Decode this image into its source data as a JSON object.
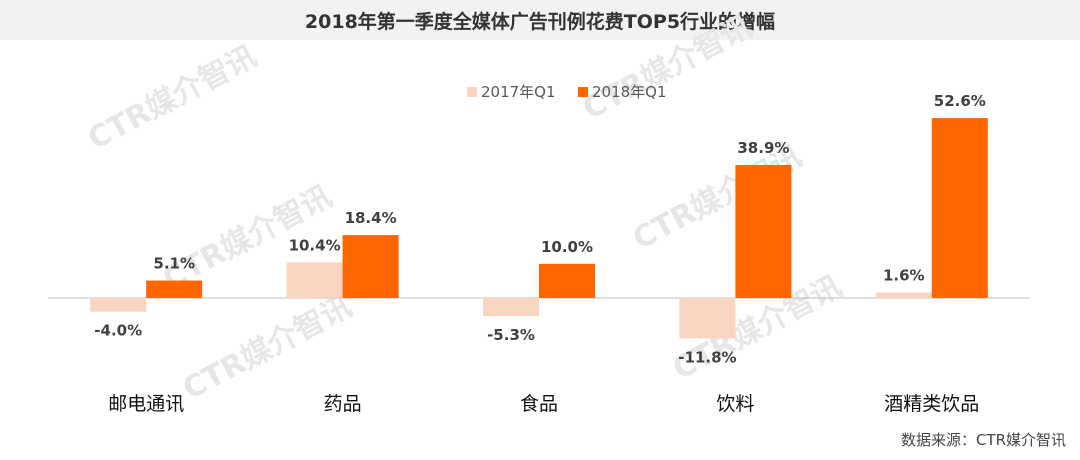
{
  "title": "2018年第一季度全媒体广告刊例花费TOP5行业的增幅",
  "source": "数据来源：CTR媒介智讯",
  "watermark": "CTR媒介智讯",
  "colors": {
    "series_2017": "#f9d4c0",
    "series_2018": "#ff6600",
    "axis": "#bfbfbf",
    "title_bg": "#f2f2f2"
  },
  "chart_data": {
    "type": "bar",
    "categories": [
      "邮电通讯",
      "药品",
      "食品",
      "饮料",
      "酒精类饮品"
    ],
    "series": [
      {
        "name": "2017年Q1",
        "values": [
          -4.0,
          10.4,
          -5.3,
          -11.8,
          1.6
        ]
      },
      {
        "name": "2018年Q1",
        "values": [
          5.1,
          18.4,
          10.0,
          38.9,
          52.6
        ]
      }
    ],
    "data_labels": [
      [
        "-4.0%",
        "10.4%",
        "-5.3%",
        "-11.8%",
        "1.6%"
      ],
      [
        "5.1%",
        "18.4%",
        "10.0%",
        "38.9%",
        "52.6%"
      ]
    ],
    "ylim": [
      -15,
      60
    ],
    "legend_position": "top",
    "grid": false
  }
}
